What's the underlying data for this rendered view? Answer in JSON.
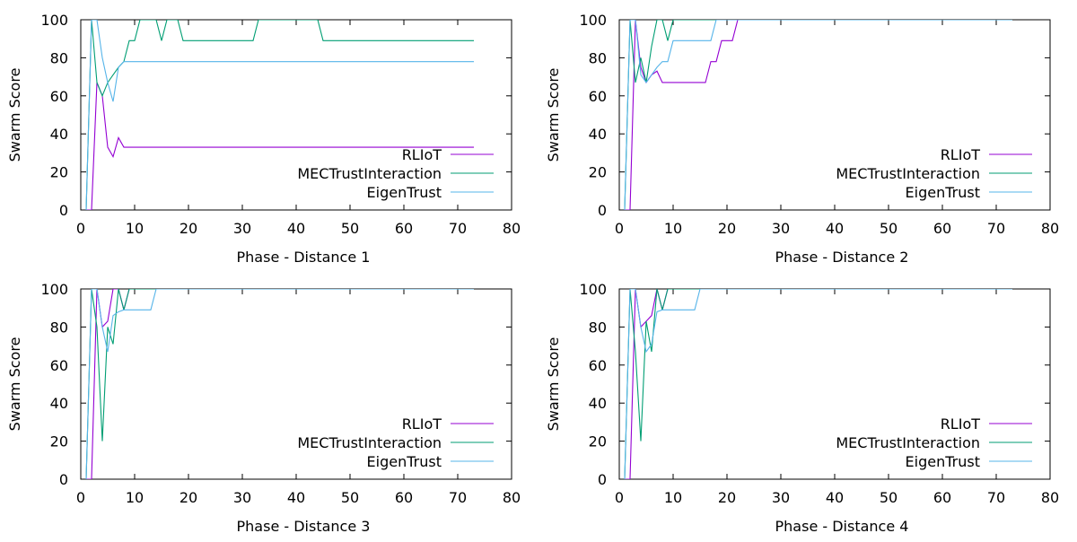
{
  "colors": {
    "RLIoT": "#9400d3",
    "MECTrustInteraction": "#009e73",
    "EigenTrust": "#56b4e9"
  },
  "chart_data": [
    {
      "type": "line",
      "xlabel": "Phase - Distance 1",
      "ylabel": "Swarm Score",
      "xlim": [
        0,
        80
      ],
      "ylim": [
        0,
        100
      ],
      "xticks": [
        "0",
        "10",
        "20",
        "30",
        "40",
        "50",
        "60",
        "70",
        "80"
      ],
      "yticks": [
        "0",
        "20",
        "40",
        "60",
        "80",
        "100"
      ],
      "grid": false,
      "legend_position": "right",
      "series": [
        {
          "name": "RLIoT",
          "x": [
            1,
            2,
            3,
            4,
            5,
            6,
            7,
            8,
            9,
            10,
            20,
            30,
            40,
            50,
            60,
            70,
            73
          ],
          "y": [
            0,
            0,
            67,
            60,
            33,
            28,
            38,
            33,
            33,
            33,
            33,
            33,
            33,
            33,
            33,
            33,
            33
          ]
        },
        {
          "name": "MECTrustInteraction",
          "x": [
            1,
            2,
            3,
            4,
            5,
            6,
            7,
            8,
            9,
            10,
            11,
            12,
            13,
            14,
            15,
            16,
            17,
            18,
            19,
            20,
            30,
            32,
            33,
            40,
            44,
            45,
            50,
            60,
            70,
            73
          ],
          "y": [
            0,
            100,
            67,
            60,
            67,
            71,
            75,
            78,
            89,
            89,
            100,
            100,
            100,
            100,
            89,
            100,
            100,
            100,
            89,
            89,
            89,
            89,
            100,
            100,
            100,
            89,
            89,
            89,
            89,
            89
          ]
        },
        {
          "name": "EigenTrust",
          "x": [
            1,
            2,
            3,
            4,
            5,
            6,
            7,
            8,
            9,
            10,
            20,
            30,
            40,
            50,
            60,
            70,
            73
          ],
          "y": [
            0,
            100,
            100,
            80,
            67,
            57,
            75,
            78,
            78,
            78,
            78,
            78,
            78,
            78,
            78,
            78,
            78
          ]
        }
      ]
    },
    {
      "type": "line",
      "xlabel": "Phase - Distance 2",
      "ylabel": "Swarm Score",
      "xlim": [
        0,
        80
      ],
      "ylim": [
        0,
        100
      ],
      "xticks": [
        "0",
        "10",
        "20",
        "30",
        "40",
        "50",
        "60",
        "70",
        "80"
      ],
      "yticks": [
        "0",
        "20",
        "40",
        "60",
        "80",
        "100"
      ],
      "grid": false,
      "legend_position": "right",
      "series": [
        {
          "name": "RLIoT",
          "x": [
            1,
            2,
            3,
            4,
            5,
            6,
            7,
            8,
            9,
            10,
            11,
            12,
            13,
            14,
            15,
            16,
            17,
            18,
            19,
            20,
            21,
            22,
            30,
            40,
            50,
            60,
            70,
            73
          ],
          "y": [
            0,
            0,
            100,
            75,
            67,
            71,
            73,
            67,
            67,
            67,
            67,
            67,
            67,
            67,
            67,
            67,
            78,
            78,
            89,
            89,
            89,
            100,
            100,
            100,
            100,
            100,
            100,
            100
          ]
        },
        {
          "name": "MECTrustInteraction",
          "x": [
            1,
            2,
            3,
            4,
            5,
            6,
            7,
            8,
            9,
            10,
            11,
            20,
            30,
            40,
            50,
            60,
            70,
            73
          ],
          "y": [
            0,
            100,
            67,
            80,
            67,
            86,
            100,
            100,
            89,
            100,
            100,
            100,
            100,
            100,
            100,
            100,
            100,
            100
          ]
        },
        {
          "name": "EigenTrust",
          "x": [
            1,
            2,
            3,
            4,
            5,
            6,
            7,
            8,
            9,
            10,
            11,
            12,
            13,
            14,
            15,
            16,
            17,
            18,
            20,
            30,
            40,
            50,
            60,
            70,
            73
          ],
          "y": [
            0,
            100,
            100,
            71,
            67,
            71,
            75,
            78,
            78,
            89,
            89,
            89,
            89,
            89,
            89,
            89,
            89,
            100,
            100,
            100,
            100,
            100,
            100,
            100,
            100
          ]
        }
      ]
    },
    {
      "type": "line",
      "xlabel": "Phase - Distance 3",
      "ylabel": "Swarm Score",
      "xlim": [
        0,
        80
      ],
      "ylim": [
        0,
        100
      ],
      "xticks": [
        "0",
        "10",
        "20",
        "30",
        "40",
        "50",
        "60",
        "70",
        "80"
      ],
      "yticks": [
        "0",
        "20",
        "40",
        "60",
        "80",
        "100"
      ],
      "grid": false,
      "legend_position": "right",
      "series": [
        {
          "name": "RLIoT",
          "x": [
            1,
            2,
            3,
            4,
            5,
            6,
            7,
            8,
            9,
            10,
            20,
            30,
            40,
            50,
            60,
            70,
            73
          ],
          "y": [
            0,
            0,
            100,
            80,
            83,
            100,
            100,
            89,
            100,
            100,
            100,
            100,
            100,
            100,
            100,
            100,
            100
          ]
        },
        {
          "name": "MECTrustInteraction",
          "x": [
            1,
            2,
            3,
            4,
            5,
            6,
            7,
            8,
            9,
            10,
            20,
            30,
            40,
            50,
            60,
            70,
            73
          ],
          "y": [
            0,
            100,
            80,
            20,
            80,
            71,
            100,
            89,
            100,
            100,
            100,
            100,
            100,
            100,
            100,
            100,
            100
          ]
        },
        {
          "name": "EigenTrust",
          "x": [
            1,
            2,
            3,
            4,
            5,
            6,
            7,
            8,
            9,
            10,
            11,
            12,
            13,
            14,
            20,
            30,
            40,
            50,
            60,
            70,
            73
          ],
          "y": [
            0,
            100,
            100,
            80,
            67,
            86,
            88,
            89,
            89,
            89,
            89,
            89,
            89,
            100,
            100,
            100,
            100,
            100,
            100,
            100,
            100
          ]
        }
      ]
    },
    {
      "type": "line",
      "xlabel": "Phase - Distance 4",
      "ylabel": "Swarm Score",
      "xlim": [
        0,
        80
      ],
      "ylim": [
        0,
        100
      ],
      "xticks": [
        "0",
        "10",
        "20",
        "30",
        "40",
        "50",
        "60",
        "70",
        "80"
      ],
      "yticks": [
        "0",
        "20",
        "40",
        "60",
        "80",
        "100"
      ],
      "grid": false,
      "legend_position": "right",
      "series": [
        {
          "name": "RLIoT",
          "x": [
            1,
            2,
            3,
            4,
            5,
            6,
            7,
            8,
            9,
            10,
            20,
            30,
            40,
            50,
            60,
            70,
            73
          ],
          "y": [
            0,
            0,
            100,
            80,
            83,
            86,
            100,
            89,
            100,
            100,
            100,
            100,
            100,
            100,
            100,
            100,
            100
          ]
        },
        {
          "name": "MECTrustInteraction",
          "x": [
            1,
            2,
            3,
            4,
            5,
            6,
            7,
            8,
            9,
            10,
            20,
            30,
            40,
            50,
            60,
            70,
            73
          ],
          "y": [
            0,
            100,
            67,
            20,
            83,
            67,
            100,
            89,
            100,
            100,
            100,
            100,
            100,
            100,
            100,
            100,
            100
          ]
        },
        {
          "name": "EigenTrust",
          "x": [
            1,
            2,
            3,
            4,
            5,
            6,
            7,
            8,
            9,
            10,
            11,
            12,
            13,
            14,
            15,
            20,
            30,
            40,
            50,
            60,
            70,
            73
          ],
          "y": [
            0,
            100,
            100,
            80,
            67,
            71,
            88,
            89,
            89,
            89,
            89,
            89,
            89,
            89,
            100,
            100,
            100,
            100,
            100,
            100,
            100,
            100
          ]
        }
      ]
    }
  ]
}
